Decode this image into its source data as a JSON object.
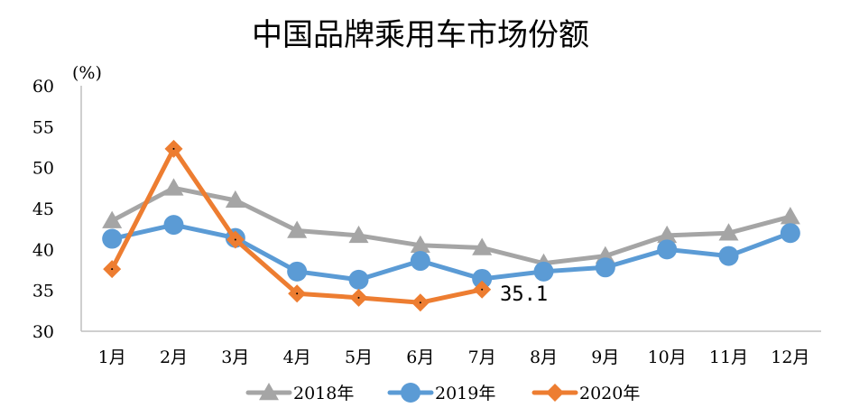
{
  "chart_data": {
    "type": "line",
    "title": "中国品牌乘用车市场份额",
    "unit_label": "(%)",
    "categories": [
      "1月",
      "2月",
      "3月",
      "4月",
      "5月",
      "6月",
      "7月",
      "8月",
      "9月",
      "10月",
      "11月",
      "12月"
    ],
    "ylim": [
      30,
      60
    ],
    "yticks": [
      "30",
      "35",
      "40",
      "45",
      "50",
      "55",
      "60"
    ],
    "grid": false,
    "legend_position": "bottom",
    "series": [
      {
        "name": "2018年",
        "marker": "triangle",
        "color": "#a5a5a5",
        "values": [
          43.5,
          47.5,
          46.0,
          42.3,
          41.7,
          40.5,
          40.2,
          38.3,
          39.2,
          41.7,
          42.0,
          44.0
        ]
      },
      {
        "name": "2019年",
        "marker": "circle",
        "color": "#5b9bd5",
        "values": [
          41.3,
          43.0,
          41.4,
          37.3,
          36.3,
          38.6,
          36.4,
          37.3,
          37.8,
          40.0,
          39.2,
          42.0
        ]
      },
      {
        "name": "2020年",
        "marker": "diamond",
        "color": "#ed7d31",
        "values": [
          37.6,
          52.3,
          41.2,
          34.6,
          34.1,
          33.5,
          35.1,
          null,
          null,
          null,
          null,
          null
        ]
      }
    ],
    "annotations": [
      {
        "series": "2020年",
        "category": "7月",
        "text": "35.1"
      }
    ]
  }
}
